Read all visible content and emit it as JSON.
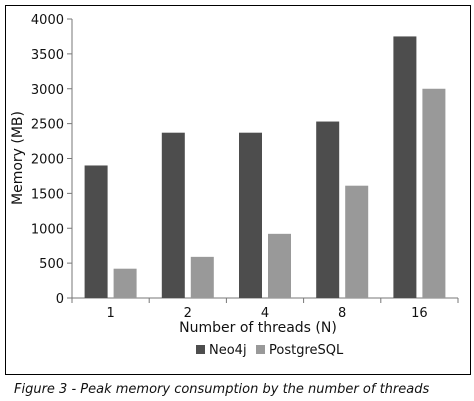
{
  "chart_data": {
    "type": "bar",
    "title": "",
    "xlabel": "Number of threads (N)",
    "ylabel": "Memory (MB)",
    "categories": [
      "1",
      "2",
      "4",
      "8",
      "16"
    ],
    "series": [
      {
        "name": "Neo4j",
        "color": "#4d4d4d",
        "values": [
          1900,
          2370,
          2370,
          2530,
          3750
        ]
      },
      {
        "name": "PostgreSQL",
        "color": "#999999",
        "values": [
          420,
          590,
          920,
          1610,
          3000
        ]
      }
    ],
    "ylim": [
      0,
      4000
    ],
    "yticks": [
      0,
      500,
      1000,
      1500,
      2000,
      2500,
      3000,
      3500,
      4000
    ],
    "legend_position": "bottom",
    "grid": false
  },
  "caption": "Figure 3 - Peak memory consumption by the number of threads"
}
